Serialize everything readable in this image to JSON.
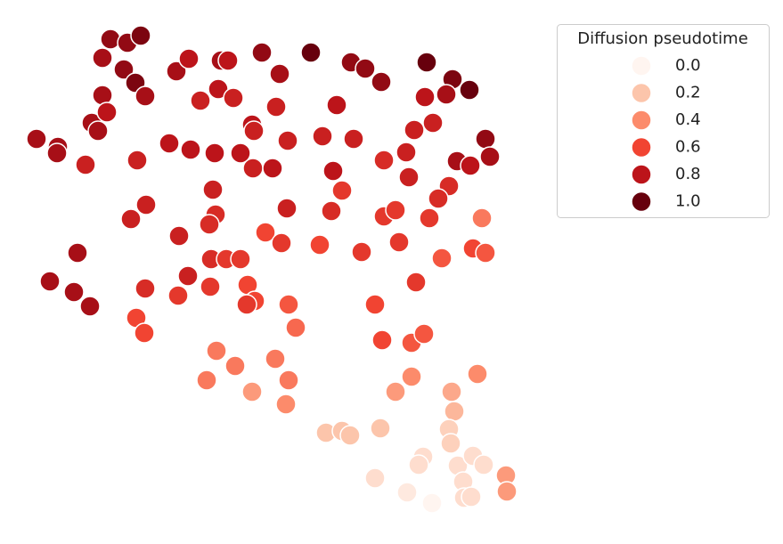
{
  "chart_data": {
    "type": "scatter",
    "x": [
      124,
      143,
      158,
      115,
      139,
      152,
      163,
      115,
      103,
      120,
      110,
      198,
      212,
      248,
      256,
      294,
      314,
      349,
      394,
      410,
      428,
      479,
      508,
      527,
      501,
      477,
      245,
      262,
      225,
      310,
      378,
      283,
      285,
      465,
      486,
      545,
      550,
      513,
      528,
      41,
      65,
      64,
      96,
      154,
      190,
      214,
      241,
      270,
      284,
      306,
      323,
      362,
      397,
      431,
      456,
      374,
      459,
      384,
      504,
      492,
      239,
      242,
      235,
      164,
      147,
      201,
      322,
      372,
      431,
      444,
      482,
      541,
      298,
      316,
      359,
      406,
      448,
      531,
      545,
      496,
      87,
      56,
      83,
      101,
      163,
      211,
      237,
      254,
      270,
      236,
      200,
      278,
      286,
      277,
      324,
      467,
      421,
      153,
      162,
      332,
      429,
      462,
      476,
      243,
      264,
      309,
      232,
      283,
      324,
      321,
      444,
      462,
      507,
      536,
      510,
      366,
      384,
      393,
      427,
      504,
      506,
      475,
      470,
      514,
      531,
      543,
      421,
      457,
      485,
      520,
      521,
      529,
      568,
      569
    ],
    "y": [
      44,
      48,
      40,
      65,
      78,
      93,
      108,
      107,
      138,
      126,
      147,
      80,
      66,
      68,
      68,
      59,
      83,
      59,
      70,
      77,
      92,
      70,
      89,
      101,
      106,
      109,
      100,
      110,
      113,
      120,
      118,
      140,
      147,
      146,
      138,
      156,
      176,
      181,
      186,
      156,
      165,
      172,
      185,
      180,
      161,
      168,
      172,
      172,
      189,
      189,
      158,
      153,
      156,
      180,
      171,
      192,
      199,
      214,
      209,
      223,
      213,
      241,
      252,
      230,
      246,
      265,
      234,
      237,
      243,
      236,
      245,
      245,
      261,
      273,
      275,
      283,
      272,
      279,
      284,
      290,
      284,
      316,
      328,
      344,
      324,
      310,
      291,
      291,
      291,
      322,
      332,
      320,
      338,
      342,
      342,
      317,
      342,
      357,
      374,
      368,
      382,
      385,
      375,
      394,
      411,
      403,
      427,
      440,
      427,
      454,
      440,
      423,
      440,
      420,
      462,
      486,
      484,
      489,
      481,
      482,
      498,
      513,
      522,
      523,
      512,
      522,
      537,
      553,
      565,
      541,
      559,
      558,
      534,
      552
    ],
    "values": [
      0.9,
      0.9,
      0.95,
      0.85,
      0.9,
      0.95,
      0.85,
      0.85,
      0.85,
      0.8,
      0.85,
      0.85,
      0.8,
      0.85,
      0.8,
      0.9,
      0.85,
      1.0,
      0.9,
      0.9,
      0.9,
      1.0,
      0.95,
      1.0,
      0.85,
      0.8,
      0.8,
      0.75,
      0.75,
      0.75,
      0.8,
      0.8,
      0.75,
      0.75,
      0.75,
      0.9,
      0.85,
      0.85,
      0.8,
      0.85,
      0.85,
      0.85,
      0.75,
      0.75,
      0.8,
      0.8,
      0.8,
      0.8,
      0.75,
      0.8,
      0.75,
      0.75,
      0.75,
      0.7,
      0.75,
      0.8,
      0.75,
      0.65,
      0.7,
      0.7,
      0.75,
      0.7,
      0.7,
      0.75,
      0.75,
      0.75,
      0.75,
      0.7,
      0.65,
      0.65,
      0.65,
      0.45,
      0.6,
      0.65,
      0.6,
      0.65,
      0.65,
      0.6,
      0.55,
      0.55,
      0.85,
      0.85,
      0.85,
      0.85,
      0.7,
      0.75,
      0.7,
      0.65,
      0.65,
      0.65,
      0.65,
      0.6,
      0.6,
      0.65,
      0.55,
      0.65,
      0.6,
      0.6,
      0.6,
      0.5,
      0.6,
      0.55,
      0.55,
      0.45,
      0.45,
      0.45,
      0.45,
      0.35,
      0.45,
      0.4,
      0.35,
      0.4,
      0.3,
      0.4,
      0.25,
      0.2,
      0.2,
      0.2,
      0.2,
      0.15,
      0.15,
      0.1,
      0.1,
      0.1,
      0.1,
      0.1,
      0.1,
      0.05,
      0.0,
      0.1,
      0.1,
      0.1,
      0.35,
      0.35
    ],
    "xlim": [
      0,
      600
    ],
    "ylim": [
      600,
      0
    ],
    "legend": {
      "title": "Diffusion pseudotime",
      "position": "upper right",
      "entries": [
        {
          "value": 0,
          "label": "0.0",
          "color": "#fff5f0"
        },
        {
          "value": 0.2,
          "label": "0.2",
          "color": "#fcc5ab"
        },
        {
          "value": 0.4,
          "label": "0.4",
          "color": "#fc8b6b"
        },
        {
          "value": 0.6,
          "label": "0.6",
          "color": "#f14432"
        },
        {
          "value": 0.8,
          "label": "0.8",
          "color": "#bc141a"
        },
        {
          "value": 1.0,
          "label": "1.0",
          "color": "#67000d"
        }
      ]
    }
  }
}
